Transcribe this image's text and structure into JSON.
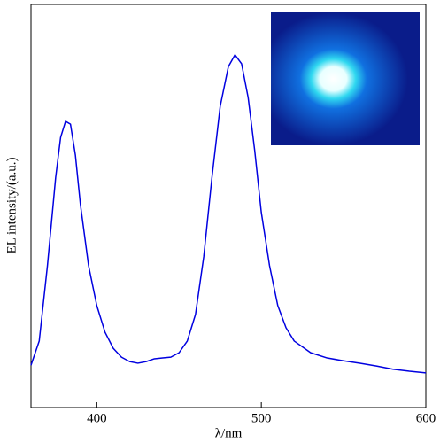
{
  "chart_data": {
    "type": "line",
    "xlabel": "λ/nm",
    "ylabel": "EL intensity/(a.u.)",
    "xlim": [
      360,
      600
    ],
    "xticks": [
      400,
      500,
      600
    ],
    "ylim": [
      0,
      1
    ],
    "series": [
      {
        "color": "#0000e0",
        "x": [
          360,
          365,
          370,
          375,
          378,
          381,
          384,
          387,
          390,
          395,
          400,
          405,
          410,
          415,
          420,
          425,
          430,
          435,
          440,
          445,
          450,
          455,
          460,
          465,
          470,
          475,
          480,
          484,
          488,
          492,
          496,
          500,
          505,
          510,
          515,
          520,
          530,
          540,
          550,
          560,
          570,
          580,
          590,
          600
        ],
        "values": [
          0.105,
          0.165,
          0.352,
          0.571,
          0.67,
          0.71,
          0.703,
          0.626,
          0.505,
          0.352,
          0.253,
          0.187,
          0.147,
          0.125,
          0.114,
          0.11,
          0.114,
          0.121,
          0.123,
          0.125,
          0.136,
          0.165,
          0.231,
          0.374,
          0.571,
          0.747,
          0.846,
          0.875,
          0.853,
          0.769,
          0.637,
          0.484,
          0.352,
          0.253,
          0.198,
          0.165,
          0.136,
          0.123,
          0.116,
          0.11,
          0.103,
          0.095,
          0.09,
          0.086
        ]
      }
    ]
  }
}
